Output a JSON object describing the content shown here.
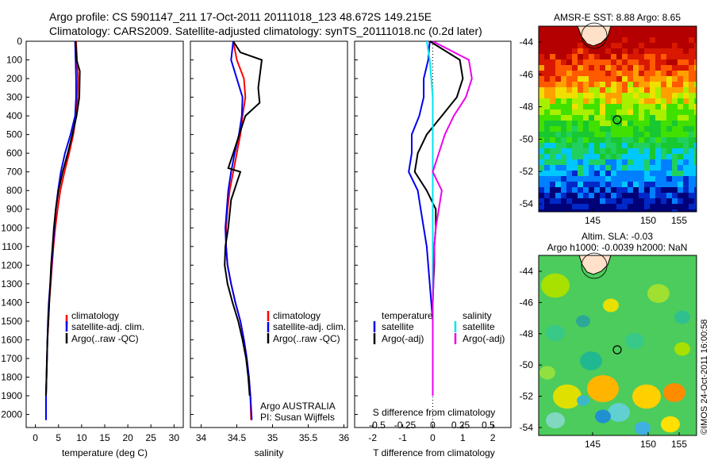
{
  "header": {
    "line1": "Argo profile: CS 5901147_211 17-Oct-2011 20111018_123 48.672S 149.215E",
    "line2": "Climatology: CARS2009. Satellite-adjusted climatology: synTS_20111018.nc (0.2d later)"
  },
  "colors": {
    "climatology": "#ff0000",
    "satellite": "#0000ee",
    "argo": "#000000",
    "sal_sat": "#00e5ee",
    "sal_argo": "#ee00ee"
  },
  "depth_ticks": [
    "0",
    "100",
    "200",
    "300",
    "400",
    "500",
    "600",
    "700",
    "800",
    "900",
    "1000",
    "1100",
    "1200",
    "1300",
    "1400",
    "1500",
    "1600",
    "1700",
    "1800",
    "1900",
    "2000"
  ],
  "depth_range": [
    0,
    2070
  ],
  "panel_temp": {
    "xlabel": "temperature (deg C)",
    "xticks": [
      "0",
      "5",
      "10",
      "15",
      "20",
      "25",
      "30"
    ],
    "xlim": [
      -2,
      32
    ],
    "legend": [
      "climatology",
      "satellite-adj. clim.",
      "Argo(..raw -QC)"
    ]
  },
  "panel_sal": {
    "xlabel": "salinity",
    "xticks": [
      "34",
      "34.5",
      "35",
      "35.5",
      "36"
    ],
    "xlim": [
      33.85,
      36.05
    ],
    "legend": [
      "climatology",
      "satellite-adj. clim.",
      "Argo(..raw -QC)"
    ],
    "note1": "Argo AUSTRALIA",
    "note2": "PI: Susan Wijffels"
  },
  "panel_diff": {
    "xlabel": "T difference from climatology",
    "xticks": [
      "-2",
      "-1",
      "0",
      "1",
      "2"
    ],
    "xlim": [
      -2.6,
      2.6
    ],
    "s_label": "S difference from climatology",
    "s_ticks": [
      "-0.5",
      "-0.25",
      "0",
      "0.25",
      "0.5"
    ],
    "legend_t_title": "temperature",
    "legend_s_title": "salinity",
    "legend_t": [
      "satellite",
      "Argo(-adj)"
    ],
    "legend_s": [
      "satellite",
      "Argo(-adj)"
    ]
  },
  "sst_map": {
    "title": "AMSR-E SST: 8.88 Argo: 8.65",
    "yticks": [
      "-44",
      "-46",
      "-48",
      "-50",
      "-52",
      "-54"
    ],
    "xticks": [
      "145",
      "150",
      "155"
    ]
  },
  "sla_map": {
    "title1": "Altim. SLA: -0.03",
    "title2": "Argo h1000: -0.0039 h2000: NaN",
    "yticks": [
      "-44",
      "-46",
      "-48",
      "-50",
      "-52",
      "-54"
    ],
    "xticks": [
      "145",
      "150",
      "155"
    ]
  },
  "credit": "©IMOS 24-Oct-2011 16:00:58",
  "chart_data": [
    {
      "type": "line",
      "title": "",
      "xlabel": "temperature (deg C)",
      "ylabel": "",
      "xlim": [
        -2,
        32
      ],
      "ylim": [
        2070,
        0
      ],
      "series": [
        {
          "name": "climatology",
          "x": [
            8.8,
            9.0,
            9.2,
            9.1,
            8.8,
            8.2,
            7.3,
            6.3,
            5.4,
            4.8,
            4.3,
            3.9,
            3.6,
            3.3,
            3.0,
            2.8,
            2.6,
            2.5,
            2.4,
            2.3,
            2.3
          ],
          "y": [
            0,
            100,
            200,
            300,
            400,
            500,
            600,
            700,
            800,
            900,
            1000,
            1100,
            1200,
            1300,
            1400,
            1500,
            1600,
            1700,
            1800,
            1900,
            2030
          ]
        },
        {
          "name": "satellite-adj. clim.",
          "x": [
            8.6,
            8.7,
            8.8,
            8.8,
            8.6,
            7.6,
            6.4,
            5.5,
            4.9,
            4.4,
            4.1,
            3.8,
            3.5,
            3.2,
            2.9,
            2.7,
            2.6,
            2.5,
            2.4,
            2.3,
            2.3
          ],
          "y": [
            0,
            100,
            200,
            300,
            400,
            500,
            600,
            700,
            800,
            900,
            1000,
            1100,
            1200,
            1300,
            1400,
            1500,
            1600,
            1700,
            1800,
            1900,
            2030
          ]
        },
        {
          "name": "Argo(..raw -QC)",
          "x": [
            8.7,
            8.9,
            9.6,
            9.5,
            8.9,
            8.0,
            7.0,
            5.9,
            5.0,
            4.4,
            4.0,
            3.7,
            3.4,
            3.2,
            3.0,
            2.8,
            2.6,
            2.5,
            2.4,
            2.3
          ],
          "y": [
            0,
            100,
            160,
            300,
            400,
            500,
            600,
            700,
            800,
            900,
            1000,
            1100,
            1200,
            1300,
            1400,
            1500,
            1600,
            1700,
            1800,
            1900
          ]
        }
      ]
    },
    {
      "type": "line",
      "title": "",
      "xlabel": "salinity",
      "ylabel": "",
      "xlim": [
        33.85,
        36.05
      ],
      "ylim": [
        2070,
        0
      ],
      "series": [
        {
          "name": "climatology",
          "x": [
            34.45,
            34.5,
            34.6,
            34.62,
            34.58,
            34.55,
            34.5,
            34.45,
            34.4,
            34.37,
            34.35,
            34.35,
            34.37,
            34.42,
            34.48,
            34.55,
            34.6,
            34.64,
            34.67,
            34.69,
            34.7
          ],
          "y": [
            0,
            100,
            200,
            300,
            400,
            500,
            600,
            700,
            800,
            900,
            1000,
            1100,
            1200,
            1300,
            1400,
            1500,
            1600,
            1700,
            1800,
            1900,
            2030
          ]
        },
        {
          "name": "satellite-adj. clim.",
          "x": [
            34.45,
            34.42,
            34.5,
            34.58,
            34.57,
            34.53,
            34.47,
            34.42,
            34.38,
            34.36,
            34.34,
            34.35,
            34.37,
            34.42,
            34.48,
            34.55,
            34.6,
            34.64,
            34.67,
            34.69,
            34.71
          ],
          "y": [
            0,
            100,
            200,
            300,
            400,
            500,
            600,
            700,
            800,
            900,
            1000,
            1100,
            1200,
            1300,
            1400,
            1500,
            1600,
            1700,
            1800,
            1900,
            2030
          ]
        },
        {
          "name": "Argo(..raw -QC)",
          "x": [
            34.45,
            34.55,
            34.85,
            34.8,
            34.82,
            34.62,
            34.45,
            34.38,
            34.55,
            34.42,
            34.38,
            34.34,
            34.33,
            34.37,
            34.44,
            34.52,
            34.58,
            34.63,
            34.66,
            34.68
          ],
          "y": [
            0,
            60,
            100,
            250,
            330,
            400,
            600,
            680,
            700,
            850,
            1000,
            1100,
            1200,
            1300,
            1400,
            1500,
            1600,
            1700,
            1800,
            1900
          ]
        }
      ]
    },
    {
      "type": "line",
      "title": "",
      "xlabel": "T difference from climatology",
      "ylabel": "",
      "xlim": [
        -2.6,
        2.6
      ],
      "ylim": [
        2070,
        0
      ],
      "series": [
        {
          "name": "temperature satellite",
          "x": [
            -0.1,
            -0.15,
            -0.3,
            -0.3,
            -0.45,
            -0.7,
            -0.7,
            -0.8,
            -0.5,
            -0.4,
            -0.3,
            -0.2,
            -0.15,
            -0.1,
            -0.05,
            0,
            0,
            0,
            0,
            0
          ],
          "y": [
            0,
            100,
            200,
            300,
            400,
            500,
            600,
            700,
            800,
            900,
            1000,
            1100,
            1200,
            1300,
            1400,
            1500,
            1600,
            1700,
            1800,
            1900
          ]
        },
        {
          "name": "temperature Argo(-adj)",
          "x": [
            -0.1,
            0.9,
            1.0,
            0.8,
            0.3,
            -0.2,
            -0.5,
            -0.6,
            -0.2,
            0.1,
            0.1,
            0.05,
            0.05,
            0.02,
            0,
            0,
            0,
            0,
            0,
            0
          ],
          "y": [
            0,
            100,
            200,
            300,
            400,
            500,
            600,
            700,
            800,
            900,
            1000,
            1100,
            1200,
            1300,
            1400,
            1500,
            1600,
            1700,
            1800,
            1900
          ]
        },
        {
          "name": "salinity satellite",
          "x": [
            -0.2,
            -0.1,
            -0.05,
            0,
            0,
            0,
            0,
            0,
            0,
            0,
            0,
            0,
            0,
            0,
            0,
            0,
            0,
            0,
            0,
            0
          ],
          "y": [
            0,
            100,
            200,
            300,
            400,
            500,
            600,
            700,
            800,
            900,
            1000,
            1100,
            1200,
            1300,
            1400,
            1500,
            1600,
            1700,
            1800,
            1900
          ]
        },
        {
          "name": "salinity Argo(-adj)",
          "x": [
            0,
            1.2,
            1.3,
            1.1,
            0.7,
            0.4,
            0.2,
            0,
            0.3,
            0.2,
            0.1,
            0.05,
            0.03,
            0.02,
            0,
            0,
            0,
            0,
            0,
            0
          ],
          "y": [
            0,
            100,
            200,
            300,
            400,
            500,
            600,
            700,
            800,
            900,
            1000,
            1100,
            1200,
            1300,
            1400,
            1500,
            1600,
            1700,
            1800,
            1900
          ]
        }
      ]
    }
  ]
}
